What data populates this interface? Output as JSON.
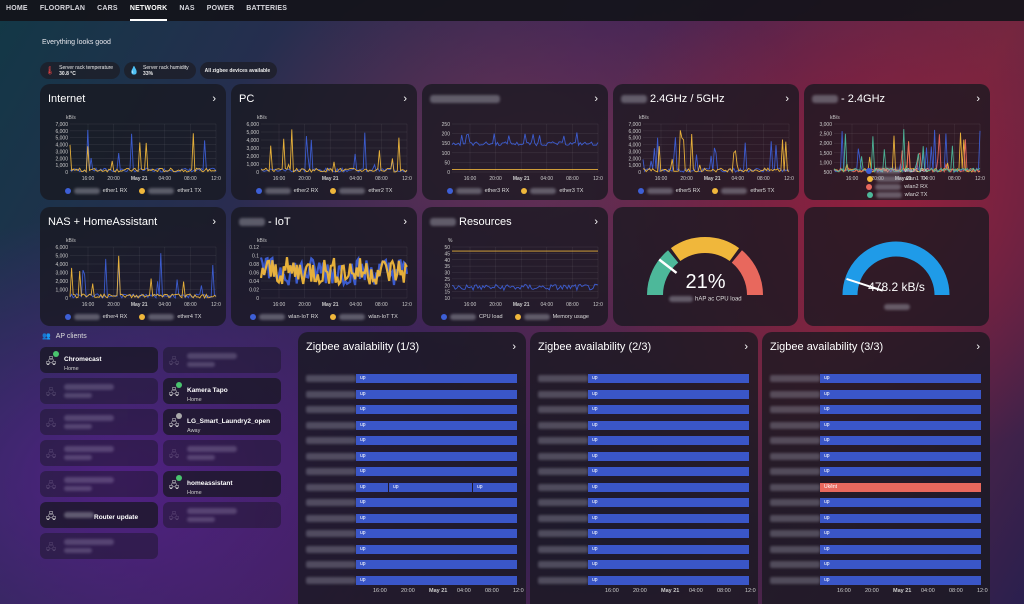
{
  "tabs": [
    {
      "label": "HOME"
    },
    {
      "label": "FLOORPLAN"
    },
    {
      "label": "CARS"
    },
    {
      "label": "NETWORK"
    },
    {
      "label": "NAS"
    },
    {
      "label": "POWER"
    },
    {
      "label": "BATTERIES"
    }
  ],
  "status": "Everything looks good",
  "chips": [
    {
      "line1": "Server rack temperature",
      "line2": "30.8 °C",
      "icon": "thermometer-icon"
    },
    {
      "line1": "Server rack humidity",
      "line2": "33%",
      "icon": "water-drop-icon"
    },
    {
      "line1": "All zigbee devices available",
      "line2": "",
      "icon": ""
    }
  ],
  "time_ticks": [
    "16:00",
    "20:00",
    "May 21",
    "04:00",
    "08:00",
    "12:0"
  ],
  "colors": {
    "blue": "#3d5fd6",
    "yellow": "#f0b73b",
    "red": "#e8685d",
    "green": "#4db89a"
  },
  "cards": [
    {
      "title": "Internet",
      "unit": "kB/s",
      "yticks": [
        "7,000",
        "6,000",
        "5,000",
        "4,000",
        "3,000",
        "2,000",
        "1,000",
        "0"
      ],
      "legend": [
        "ether1 RX",
        "ether1 TX"
      ]
    },
    {
      "title": "PC",
      "unit": "kB/s",
      "yticks": [
        "6,000",
        "5,000",
        "4,000",
        "3,000",
        "2,000",
        "1,000",
        "0"
      ],
      "legend": [
        "ether2 RX",
        "ether2 TX"
      ]
    },
    {
      "title": "",
      "unit": "",
      "yticks": [
        "250",
        "200",
        "150",
        "100",
        "50",
        "0"
      ],
      "legend": [
        "ether3 RX",
        "ether3 TX"
      ]
    },
    {
      "title": "2.4GHz / 5GHz",
      "unit": "kB/s",
      "yticks": [
        "7,000",
        "6,000",
        "5,000",
        "4,000",
        "3,000",
        "2,000",
        "1,000",
        "0"
      ],
      "legend": [
        "ether5 RX",
        "ether5 TX"
      ]
    },
    {
      "title": "- 2.4GHz",
      "unit": "kB/s",
      "yticks": [
        "3,000",
        "2,500",
        "2,000",
        "1,500",
        "1,000",
        "500"
      ],
      "legend": [
        "wlan1 RX",
        "wlan1 TX",
        "wlan2 RX",
        "wlan2 TX"
      ]
    },
    {
      "title": "NAS + HomeAssistant",
      "unit": "kB/s",
      "yticks": [
        "6,000",
        "5,000",
        "4,000",
        "3,000",
        "2,000",
        "1,000",
        "0"
      ],
      "legend": [
        "ether4 RX",
        "ether4 TX"
      ]
    },
    {
      "title": "- IoT",
      "unit": "kB/s",
      "yticks": [
        "0.12",
        "0.1",
        "0.08",
        "0.06",
        "0.04",
        "0.02",
        "0"
      ],
      "legend": [
        "wlan-IoT RX",
        "wlan-IoT TX"
      ]
    },
    {
      "title": "Resources",
      "unit": "%",
      "yticks": [
        "50",
        "45",
        "40",
        "35",
        "30",
        "25",
        "20",
        "15",
        "10"
      ],
      "legend": [
        "CPU load",
        "Memory usage"
      ]
    }
  ],
  "gauges": [
    {
      "value": "21%",
      "label": "hAP ac CPU load",
      "percent": 21
    },
    {
      "value": "478.2 kB/s",
      "label": "",
      "percent": 68
    }
  ],
  "ap_section": "AP clients",
  "ap_clients": [
    {
      "name": "Chromecast",
      "sub": "Home",
      "col": 0,
      "row": 0
    },
    {
      "name": "",
      "sub": "",
      "col": 1,
      "row": 0
    },
    {
      "name": "",
      "sub": "",
      "col": 0,
      "row": 1
    },
    {
      "name": "Kamera Tapo",
      "sub": "Home",
      "col": 1,
      "row": 1
    },
    {
      "name": "",
      "sub": "",
      "col": 0,
      "row": 2
    },
    {
      "name": "LG_Smart_Laundry2_open",
      "sub": "Away",
      "col": 1,
      "row": 2
    },
    {
      "name": "",
      "sub": "",
      "col": 0,
      "row": 3
    },
    {
      "name": "",
      "sub": "",
      "col": 1,
      "row": 3
    },
    {
      "name": "",
      "sub": "",
      "col": 0,
      "row": 4
    },
    {
      "name": "homeassistant",
      "sub": "Home",
      "col": 1,
      "row": 4
    },
    {
      "name": "Router update",
      "sub": "",
      "col": 0,
      "row": 5
    },
    {
      "name": "",
      "sub": "",
      "col": 1,
      "row": 5
    },
    {
      "name": "",
      "sub": "",
      "col": 0,
      "row": 6
    }
  ],
  "zigbee": [
    {
      "title": "Zigbee availability (1/3)",
      "bars": [
        "up",
        "up",
        "up",
        "up",
        "up",
        "up",
        "up",
        "up",
        "up",
        "up",
        "up",
        "up",
        "up",
        "up"
      ],
      "split_row": 7
    },
    {
      "title": "Zigbee availability (2/3)",
      "bars": [
        "up",
        "up",
        "up",
        "up",
        "up",
        "up",
        "up",
        "up",
        "up",
        "up",
        "up",
        "up",
        "up",
        "up"
      ],
      "split_row": -1
    },
    {
      "title": "Zigbee availability (3/3)",
      "bars": [
        "up",
        "up",
        "up",
        "up",
        "up",
        "up",
        "up",
        "unavailable",
        "up",
        "up",
        "up",
        "up",
        "up",
        "up"
      ],
      "split_row": -1
    }
  ],
  "zigbee_state_labels": {
    "up": "up",
    "unavailable": "Ukěnt"
  }
}
